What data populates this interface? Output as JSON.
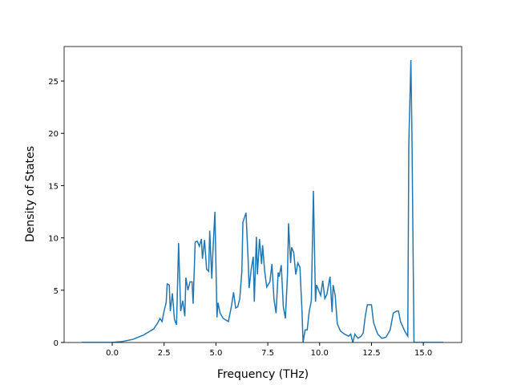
{
  "chart_data": {
    "type": "line",
    "xlabel": "Frequency (THz)",
    "ylabel": "Density of States",
    "xlim": [
      -2.32,
      16.85
    ],
    "ylim": [
      0,
      28.3
    ],
    "xticks": [
      {
        "value": 0,
        "label": "0.0"
      },
      2.5,
      {
        "value": 5,
        "label": "5.0"
      },
      7.5,
      {
        "value": 10,
        "label": "10.0"
      },
      12.5,
      {
        "value": 15,
        "label": "15.0"
      }
    ],
    "yticks": [
      0,
      5,
      10,
      15,
      20,
      25
    ],
    "series": [
      {
        "color": "#1f77b4",
        "x": [
          -1.47,
          0,
          0.5,
          1.0,
          1.5,
          2.0,
          2.2,
          2.3,
          2.4,
          2.5,
          2.6,
          2.65,
          2.75,
          2.8,
          2.9,
          3.0,
          3.1,
          3.2,
          3.3,
          3.35,
          3.4,
          3.5,
          3.55,
          3.65,
          3.75,
          3.85,
          3.9,
          4.0,
          4.1,
          4.2,
          4.3,
          4.35,
          4.45,
          4.55,
          4.65,
          4.7,
          4.8,
          4.85,
          4.95,
          5.05,
          5.1,
          5.2,
          5.35,
          5.6,
          5.75,
          5.85,
          5.95,
          6.05,
          6.15,
          6.25,
          6.3,
          6.45,
          6.55,
          6.6,
          6.7,
          6.8,
          6.85,
          6.95,
          7.0,
          7.1,
          7.2,
          7.25,
          7.35,
          7.45,
          7.6,
          7.7,
          7.8,
          7.9,
          8.0,
          8.05,
          8.15,
          8.25,
          8.35,
          8.45,
          8.5,
          8.6,
          8.65,
          8.75,
          8.85,
          8.95,
          9.05,
          9.15,
          9.2,
          9.3,
          9.4,
          9.5,
          9.6,
          9.7,
          9.8,
          9.85,
          9.95,
          10.05,
          10.15,
          10.25,
          10.35,
          10.5,
          10.6,
          10.65,
          10.75,
          10.85,
          11.0,
          11.2,
          11.4,
          11.5,
          11.6,
          11.7,
          11.85,
          12.0,
          12.1,
          12.2,
          12.3,
          12.5,
          12.6,
          12.8,
          13.0,
          13.2,
          13.4,
          13.55,
          13.7,
          13.8,
          13.9,
          14.1,
          14.25,
          14.3,
          14.4,
          14.45,
          14.55,
          15.96
        ],
        "values": [
          0,
          0,
          0.1,
          0.3,
          0.7,
          1.3,
          1.9,
          2.3,
          2.0,
          3.0,
          3.8,
          5.6,
          5.5,
          3.0,
          4.7,
          2.2,
          1.7,
          9.5,
          3.0,
          3.5,
          4.0,
          2.5,
          6.2,
          5.0,
          5.8,
          5.8,
          3.7,
          9.6,
          9.7,
          9.2,
          9.9,
          8.0,
          9.8,
          7.0,
          6.8,
          10.7,
          6.1,
          8.5,
          12.5,
          2.4,
          3.8,
          2.8,
          2.3,
          2.0,
          3.5,
          4.8,
          3.3,
          3.4,
          4.2,
          6.8,
          11.5,
          12.4,
          8.0,
          5.2,
          7.0,
          8.2,
          3.9,
          10.1,
          6.5,
          9.9,
          7.5,
          9.3,
          6.8,
          5.3,
          5.8,
          7.5,
          4.1,
          2.8,
          6.7,
          6.3,
          7.4,
          3.4,
          2.3,
          6.5,
          11.4,
          7.6,
          9.1,
          8.6,
          6.5,
          7.6,
          7.2,
          3.0,
          0.0,
          1.2,
          1.2,
          3.0,
          4.0,
          14.5,
          3.9,
          5.5,
          5.0,
          4.5,
          5.9,
          4.2,
          4.6,
          6.3,
          2.9,
          5.5,
          4.5,
          1.8,
          1.1,
          0.8,
          0.6,
          0.8,
          0.0,
          0.8,
          0.4,
          0.6,
          0.9,
          2.5,
          3.6,
          3.6,
          1.9,
          0.8,
          0.4,
          0.5,
          1.2,
          2.8,
          3.0,
          3.0,
          2.0,
          1.1,
          0.6,
          19.0,
          27.0,
          20.0,
          0.0,
          0
        ]
      }
    ]
  }
}
